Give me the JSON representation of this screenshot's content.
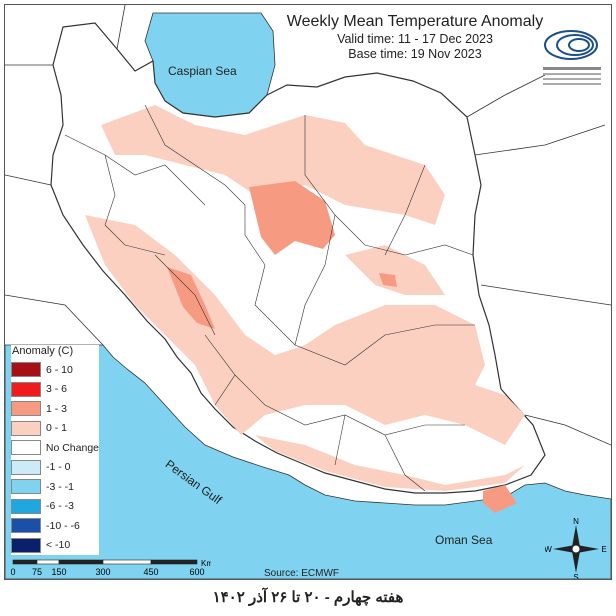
{
  "title": "Weekly Mean Temperature Anomaly",
  "valid_time": "Valid time: 11 - 17 Dec 2023",
  "base_time": "Base time: 19 Nov 2023",
  "legend": {
    "title": "Anomaly (C)",
    "items": [
      {
        "label": "6 - 10",
        "color": "#a50f15"
      },
      {
        "label": "3 - 6",
        "color": "#ee1c1c"
      },
      {
        "label": "1 - 3",
        "color": "#f79a82"
      },
      {
        "label": "0 - 1",
        "color": "#fbd0c1"
      },
      {
        "label": "No Change",
        "color": "#ffffff"
      },
      {
        "label": "-1 - 0",
        "color": "#cdeaf8"
      },
      {
        "label": "-3 - -1",
        "color": "#7fd3f0"
      },
      {
        "label": "-6 - -3",
        "color": "#1fa8e0"
      },
      {
        "label": "-10 - -6",
        "color": "#1b4fa8"
      },
      {
        "label": "< -10",
        "color": "#0b1f6b"
      }
    ]
  },
  "seas": {
    "caspian": "Caspian Sea",
    "persian_gulf": "Persian Gulf",
    "oman": "Oman Sea"
  },
  "scale": {
    "ticks": [
      "0",
      "75",
      "150",
      "300",
      "450",
      "600"
    ],
    "unit": "Km"
  },
  "source": "Source: ECMWF",
  "compass": {
    "n": "N",
    "s": "S",
    "e": "E",
    "w": "W"
  },
  "footer": "هفته چهارم - ۲۰ تا ۲۶ آذر ۱۴۰۲",
  "colors": {
    "sea": "#7fd3f0",
    "border": "#333333"
  }
}
